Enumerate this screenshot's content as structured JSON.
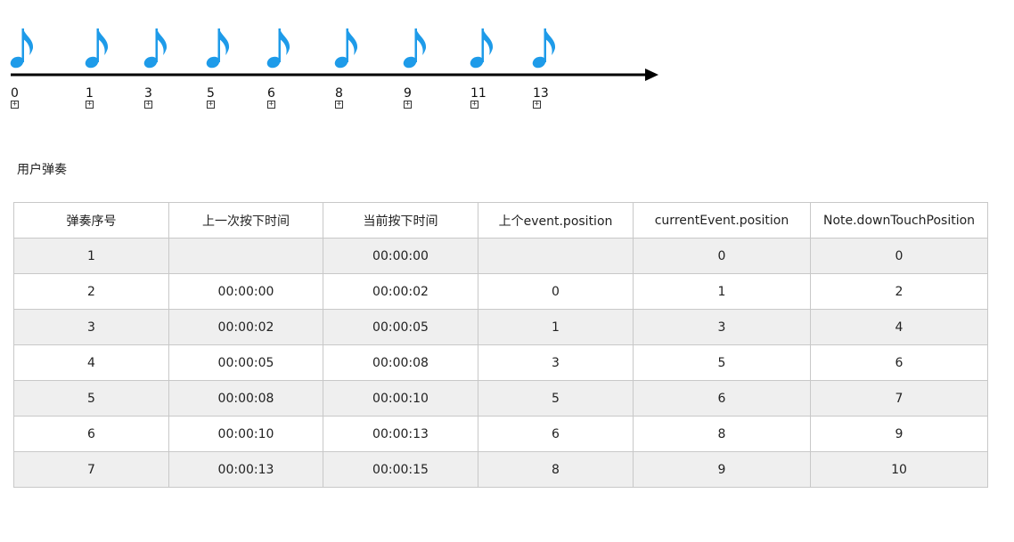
{
  "timeline": {
    "note_color": "#1e9be9",
    "arrow_color": "#000000",
    "notes": [
      {
        "label": "0",
        "marker": "⊞"
      },
      {
        "label": "1",
        "marker": "⊞"
      },
      {
        "label": "3",
        "marker": "⊞"
      },
      {
        "label": "5",
        "marker": "⊞"
      },
      {
        "label": "6",
        "marker": "⊞"
      },
      {
        "label": "8",
        "marker": "⊞"
      },
      {
        "label": "9",
        "marker": "⊞"
      },
      {
        "label": "11",
        "marker": "⊞"
      },
      {
        "label": "13",
        "marker": "⊞"
      }
    ]
  },
  "section": {
    "title": "用户弹奏"
  },
  "table": {
    "headers": [
      "弹奏序号",
      "上一次按下时间",
      "当前按下时间",
      "上个event.position",
      "currentEvent.position",
      "Note.downTouchPosition"
    ],
    "rows": [
      [
        "1",
        "",
        "00:00:00",
        "",
        "0",
        "0"
      ],
      [
        "2",
        "00:00:00",
        "00:00:02",
        "0",
        "1",
        "2"
      ],
      [
        "3",
        "00:00:02",
        "00:00:05",
        "1",
        "3",
        "4"
      ],
      [
        "4",
        "00:00:05",
        "00:00:08",
        "3",
        "5",
        "6"
      ],
      [
        "5",
        "00:00:08",
        "00:00:10",
        "5",
        "6",
        "7"
      ],
      [
        "6",
        "00:00:10",
        "00:00:13",
        "6",
        "8",
        "9"
      ],
      [
        "7",
        "00:00:13",
        "00:00:15",
        "8",
        "9",
        "10"
      ]
    ],
    "stripe_color": "#efefef",
    "border_color": "#c8c8c8"
  }
}
